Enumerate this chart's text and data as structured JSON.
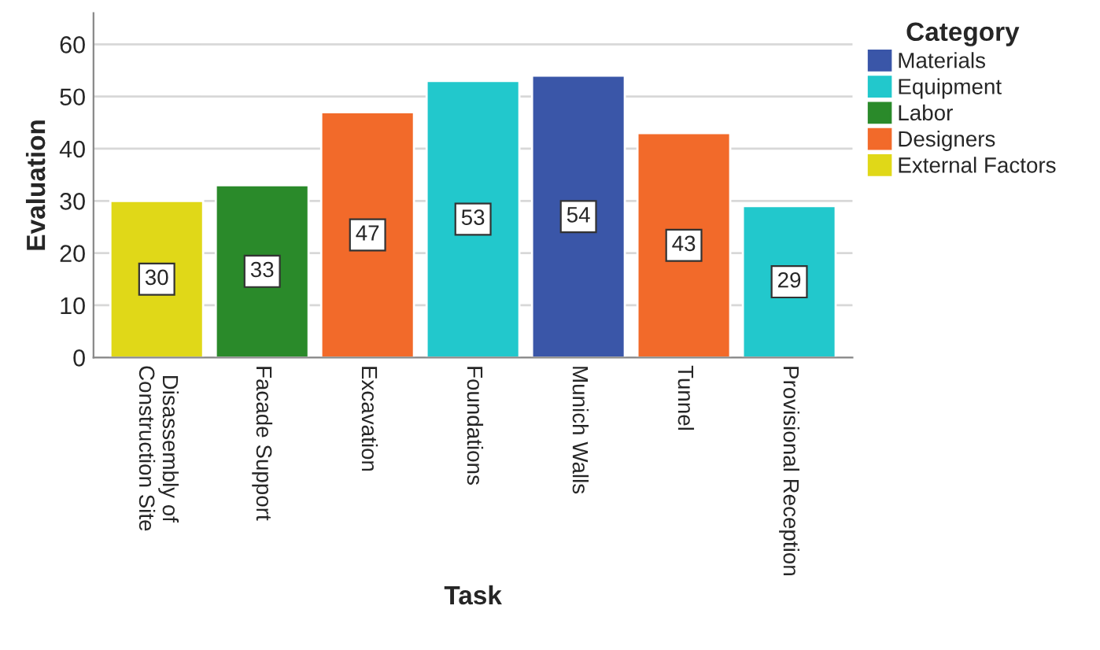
{
  "chart_data": {
    "type": "bar",
    "xlabel": "Task",
    "ylabel": "Evaluation",
    "legend_title": "Category",
    "categories": [
      "Disassembly of\nConstruction Site",
      "Facade Support",
      "Excavation",
      "Foundations",
      "Munich Walls",
      "Tunnel",
      "Provisional Reception"
    ],
    "series": [
      {
        "name": "Materials",
        "color": "#3a56a8",
        "values": [
          null,
          null,
          null,
          null,
          54,
          null,
          null
        ]
      },
      {
        "name": "Equipment",
        "color": "#22c8cc",
        "values": [
          null,
          null,
          null,
          53,
          null,
          null,
          29
        ]
      },
      {
        "name": "Labor",
        "color": "#2a8a2a",
        "values": [
          null,
          33,
          null,
          null,
          null,
          null,
          null
        ]
      },
      {
        "name": "Designers",
        "color": "#f26a2a",
        "values": [
          null,
          null,
          47,
          null,
          null,
          43,
          null
        ]
      },
      {
        "name": "External Factors",
        "color": "#e0d818",
        "values": [
          30,
          null,
          null,
          null,
          null,
          null,
          null
        ]
      }
    ],
    "ylim": [
      0,
      66
    ],
    "yticks": [
      0,
      10,
      20,
      30,
      40,
      50,
      60
    ],
    "grid": "y",
    "legend": "right",
    "data_labels": true
  }
}
